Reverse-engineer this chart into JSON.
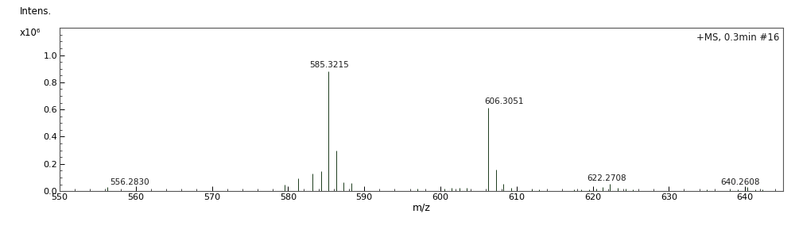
{
  "xlim": [
    550,
    645
  ],
  "ylim": [
    0,
    1.2
  ],
  "xlabel": "m/z",
  "ylabel_line1": "Intens.",
  "ylabel_line2": "x10⁶",
  "annotation_text": "+MS, 0.3min #16",
  "yticks": [
    0.0,
    0.2,
    0.4,
    0.6,
    0.8,
    1.0
  ],
  "xticks": [
    550,
    560,
    570,
    580,
    590,
    600,
    610,
    620,
    630,
    640
  ],
  "background_color": "#ffffff",
  "line_color": "#1a1a1a",
  "peaks": [
    {
      "mz": 556.283,
      "intensity": 0.028,
      "label": "556.2830"
    },
    {
      "mz": 579.5,
      "intensity": 0.05,
      "label": null
    },
    {
      "mz": 581.3,
      "intensity": 0.095,
      "label": null
    },
    {
      "mz": 583.2,
      "intensity": 0.13,
      "label": null
    },
    {
      "mz": 584.3,
      "intensity": 0.145,
      "label": null
    },
    {
      "mz": 585.3215,
      "intensity": 0.88,
      "label": "585.3215"
    },
    {
      "mz": 586.3,
      "intensity": 0.295,
      "label": null
    },
    {
      "mz": 587.3,
      "intensity": 0.065,
      "label": null
    },
    {
      "mz": 588.3,
      "intensity": 0.06,
      "label": null
    },
    {
      "mz": 597.0,
      "intensity": 0.018,
      "label": null
    },
    {
      "mz": 600.5,
      "intensity": 0.02,
      "label": null
    },
    {
      "mz": 601.5,
      "intensity": 0.022,
      "label": null
    },
    {
      "mz": 602.5,
      "intensity": 0.022,
      "label": null
    },
    {
      "mz": 603.5,
      "intensity": 0.022,
      "label": null
    },
    {
      "mz": 606.3051,
      "intensity": 0.61,
      "label": "606.3051"
    },
    {
      "mz": 607.3,
      "intensity": 0.16,
      "label": null
    },
    {
      "mz": 608.3,
      "intensity": 0.055,
      "label": null
    },
    {
      "mz": 609.3,
      "intensity": 0.025,
      "label": null
    },
    {
      "mz": 612.0,
      "intensity": 0.015,
      "label": null
    },
    {
      "mz": 613.0,
      "intensity": 0.015,
      "label": null
    },
    {
      "mz": 617.5,
      "intensity": 0.013,
      "label": null
    },
    {
      "mz": 618.5,
      "intensity": 0.013,
      "label": null
    },
    {
      "mz": 619.5,
      "intensity": 0.012,
      "label": null
    },
    {
      "mz": 620.5,
      "intensity": 0.018,
      "label": null
    },
    {
      "mz": 621.3,
      "intensity": 0.03,
      "label": null
    },
    {
      "mz": 622.2708,
      "intensity": 0.055,
      "label": "622.2708"
    },
    {
      "mz": 623.3,
      "intensity": 0.025,
      "label": null
    },
    {
      "mz": 624.3,
      "intensity": 0.018,
      "label": null
    },
    {
      "mz": 625.3,
      "intensity": 0.012,
      "label": null
    },
    {
      "mz": 635.0,
      "intensity": 0.01,
      "label": null
    },
    {
      "mz": 638.0,
      "intensity": 0.01,
      "label": null
    },
    {
      "mz": 639.0,
      "intensity": 0.012,
      "label": null
    },
    {
      "mz": 640.2608,
      "intensity": 0.028,
      "label": "640.2608"
    },
    {
      "mz": 641.3,
      "intensity": 0.012,
      "label": null
    },
    {
      "mz": 642.3,
      "intensity": 0.01,
      "label": null
    }
  ]
}
